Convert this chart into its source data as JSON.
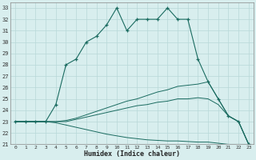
{
  "xlabel": "Humidex (Indice chaleur)",
  "xlim": [
    -0.5,
    23.5
  ],
  "ylim": [
    21,
    33.5
  ],
  "yticks": [
    21,
    22,
    23,
    24,
    25,
    26,
    27,
    28,
    29,
    30,
    31,
    32,
    33
  ],
  "xticks": [
    0,
    1,
    2,
    3,
    4,
    5,
    6,
    7,
    8,
    9,
    10,
    11,
    12,
    13,
    14,
    15,
    16,
    17,
    18,
    19,
    20,
    21,
    22,
    23
  ],
  "bg_color": "#d8eeee",
  "grid_color": "#b8d8d8",
  "line_color": "#1a6b60",
  "line1_x": [
    0,
    1,
    2,
    3,
    4,
    5,
    6,
    7,
    8,
    9,
    10,
    11,
    12,
    13,
    14,
    15,
    16,
    17,
    18,
    19,
    20,
    21,
    22,
    23
  ],
  "line1_y": [
    23,
    23,
    23,
    23,
    24.5,
    28,
    28.5,
    30,
    30.5,
    31.5,
    33,
    31,
    32,
    32,
    32,
    33,
    32,
    32,
    28.5,
    26.5,
    25,
    23.5,
    23,
    21
  ],
  "line2_x": [
    0,
    2,
    3,
    4,
    5,
    6,
    7,
    8,
    9,
    10,
    11,
    12,
    13,
    14,
    15,
    16,
    17,
    18,
    19,
    20,
    21,
    22,
    23
  ],
  "line2_y": [
    23,
    23,
    23,
    23,
    23.1,
    23.3,
    23.6,
    23.9,
    24.2,
    24.5,
    24.8,
    25.0,
    25.3,
    25.6,
    25.8,
    26.1,
    26.2,
    26.3,
    26.5,
    25.0,
    23.5,
    23.0,
    21.0
  ],
  "line3_x": [
    0,
    2,
    3,
    4,
    5,
    6,
    7,
    8,
    9,
    10,
    11,
    12,
    13,
    14,
    15,
    16,
    17,
    18,
    19,
    20,
    21,
    22,
    23
  ],
  "line3_y": [
    23,
    23,
    23,
    23,
    23.0,
    23.2,
    23.4,
    23.6,
    23.8,
    24.0,
    24.2,
    24.4,
    24.5,
    24.7,
    24.8,
    25.0,
    25.0,
    25.1,
    25.0,
    24.5,
    23.5,
    23.0,
    21.0
  ],
  "line4_x": [
    0,
    2,
    3,
    4,
    5,
    6,
    7,
    8,
    9,
    10,
    11,
    12,
    13,
    14,
    15,
    16,
    17,
    18,
    19,
    20,
    21,
    22,
    23
  ],
  "line4_y": [
    23,
    23,
    23,
    22.9,
    22.7,
    22.5,
    22.3,
    22.1,
    21.9,
    21.75,
    21.6,
    21.5,
    21.4,
    21.35,
    21.3,
    21.3,
    21.25,
    21.2,
    21.2,
    21.1,
    21.0,
    21.0,
    21.0
  ]
}
